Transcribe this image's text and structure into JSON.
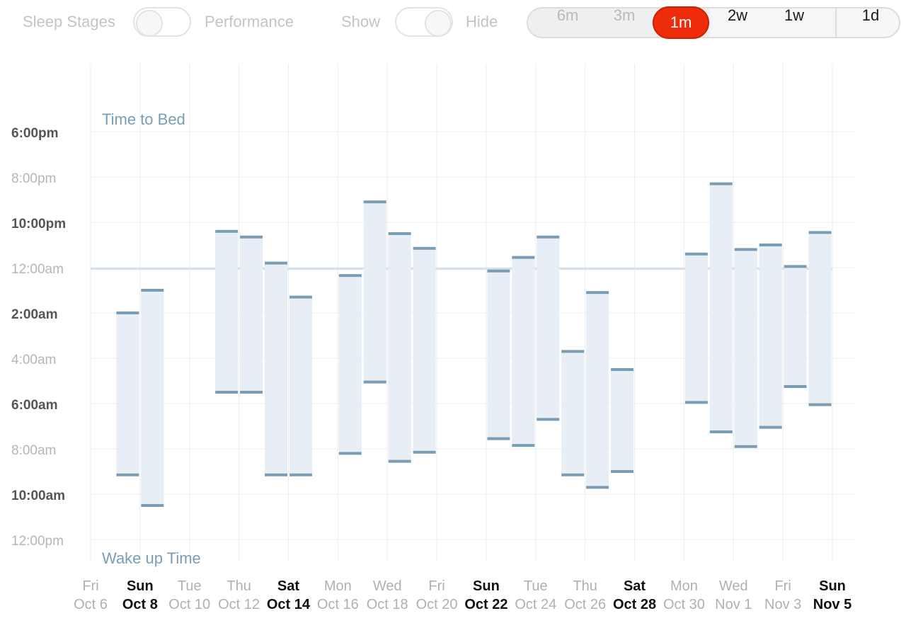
{
  "toolbar": {
    "sleep_stages_label": "Sleep Stages",
    "performance_label": "Performance",
    "show_label": "Show",
    "hide_label": "Hide",
    "ranges": [
      "6m",
      "3m",
      "1m",
      "2w",
      "1w",
      "1d"
    ],
    "selected_range": "1m",
    "accent_color": "#ee2b0a"
  },
  "chart_data": {
    "type": "range-bar",
    "top_label": "Time to Bed",
    "bottom_label": "Wake up Time",
    "y_ticks": [
      {
        "label": "6:00pm",
        "h": -6,
        "bold": true
      },
      {
        "label": "8:00pm",
        "h": -4,
        "bold": false
      },
      {
        "label": "10:00pm",
        "h": -2,
        "bold": true
      },
      {
        "label": "12:00am",
        "h": 0,
        "bold": false
      },
      {
        "label": "2:00am",
        "h": 2,
        "bold": true
      },
      {
        "label": "4:00am",
        "h": 4,
        "bold": false
      },
      {
        "label": "6:00am",
        "h": 6,
        "bold": true
      },
      {
        "label": "8:00am",
        "h": 8,
        "bold": false
      },
      {
        "label": "10:00am",
        "h": 10,
        "bold": true
      },
      {
        "label": "12:00pm",
        "h": 12,
        "bold": false
      }
    ],
    "y_range": [
      -8.9,
      13
    ],
    "x_labels": [
      {
        "day": 0,
        "dow": "Fri",
        "date": "Oct 6",
        "bold": false
      },
      {
        "day": 2,
        "dow": "Sun",
        "date": "Oct 8",
        "bold": true
      },
      {
        "day": 4,
        "dow": "Tue",
        "date": "Oct 10",
        "bold": false
      },
      {
        "day": 6,
        "dow": "Thu",
        "date": "Oct 12",
        "bold": false
      },
      {
        "day": 8,
        "dow": "Sat",
        "date": "Oct 14",
        "bold": true
      },
      {
        "day": 10,
        "dow": "Mon",
        "date": "Oct 16",
        "bold": false
      },
      {
        "day": 12,
        "dow": "Wed",
        "date": "Oct 18",
        "bold": false
      },
      {
        "day": 14,
        "dow": "Fri",
        "date": "Oct 20",
        "bold": false
      },
      {
        "day": 16,
        "dow": "Sun",
        "date": "Oct 22",
        "bold": true
      },
      {
        "day": 18,
        "dow": "Tue",
        "date": "Oct 24",
        "bold": false
      },
      {
        "day": 20,
        "dow": "Thu",
        "date": "Oct 26",
        "bold": false
      },
      {
        "day": 22,
        "dow": "Sat",
        "date": "Oct 28",
        "bold": true
      },
      {
        "day": 24,
        "dow": "Mon",
        "date": "Oct 30",
        "bold": false
      },
      {
        "day": 26,
        "dow": "Wed",
        "date": "Nov 1",
        "bold": false
      },
      {
        "day": 28,
        "dow": "Fri",
        "date": "Nov 3",
        "bold": false
      },
      {
        "day": 30,
        "dow": "Sun",
        "date": "Nov 5",
        "bold": true
      }
    ],
    "x_range": [
      0,
      30
    ],
    "reference_line_h": 0.05,
    "bars": [
      {
        "day": 1.5,
        "bed": 2.0,
        "wake": 9.15
      },
      {
        "day": 2.5,
        "bed": 1.0,
        "wake": 10.5
      },
      {
        "day": 5.5,
        "bed": -1.6,
        "wake": 5.5
      },
      {
        "day": 6.5,
        "bed": -1.35,
        "wake": 5.5
      },
      {
        "day": 7.5,
        "bed": -0.2,
        "wake": 9.15
      },
      {
        "day": 8.5,
        "bed": 1.3,
        "wake": 9.15
      },
      {
        "day": 10.5,
        "bed": 0.35,
        "wake": 8.2
      },
      {
        "day": 11.5,
        "bed": -2.9,
        "wake": 5.05
      },
      {
        "day": 12.5,
        "bed": -1.5,
        "wake": 8.55
      },
      {
        "day": 13.5,
        "bed": -0.85,
        "wake": 8.15
      },
      {
        "day": 16.5,
        "bed": 0.15,
        "wake": 7.55
      },
      {
        "day": 17.5,
        "bed": -0.45,
        "wake": 7.85
      },
      {
        "day": 18.5,
        "bed": -1.35,
        "wake": 6.7
      },
      {
        "day": 19.5,
        "bed": 3.7,
        "wake": 9.15
      },
      {
        "day": 20.5,
        "bed": 1.1,
        "wake": 9.7
      },
      {
        "day": 21.5,
        "bed": 4.5,
        "wake": 9.0
      },
      {
        "day": 24.5,
        "bed": -0.6,
        "wake": 5.95
      },
      {
        "day": 25.5,
        "bed": -3.7,
        "wake": 7.25
      },
      {
        "day": 26.5,
        "bed": -0.8,
        "wake": 7.9
      },
      {
        "day": 27.5,
        "bed": -1.0,
        "wake": 7.05
      },
      {
        "day": 28.5,
        "bed": -0.05,
        "wake": 5.25
      },
      {
        "day": 29.5,
        "bed": -1.55,
        "wake": 6.05
      }
    ],
    "colors": {
      "bar_fill": "#e8eef5",
      "bar_cap": "#7a9db6",
      "grid": "#ececec",
      "reference_line": "#d6e0ea",
      "annotation": "#7a9db6"
    }
  }
}
